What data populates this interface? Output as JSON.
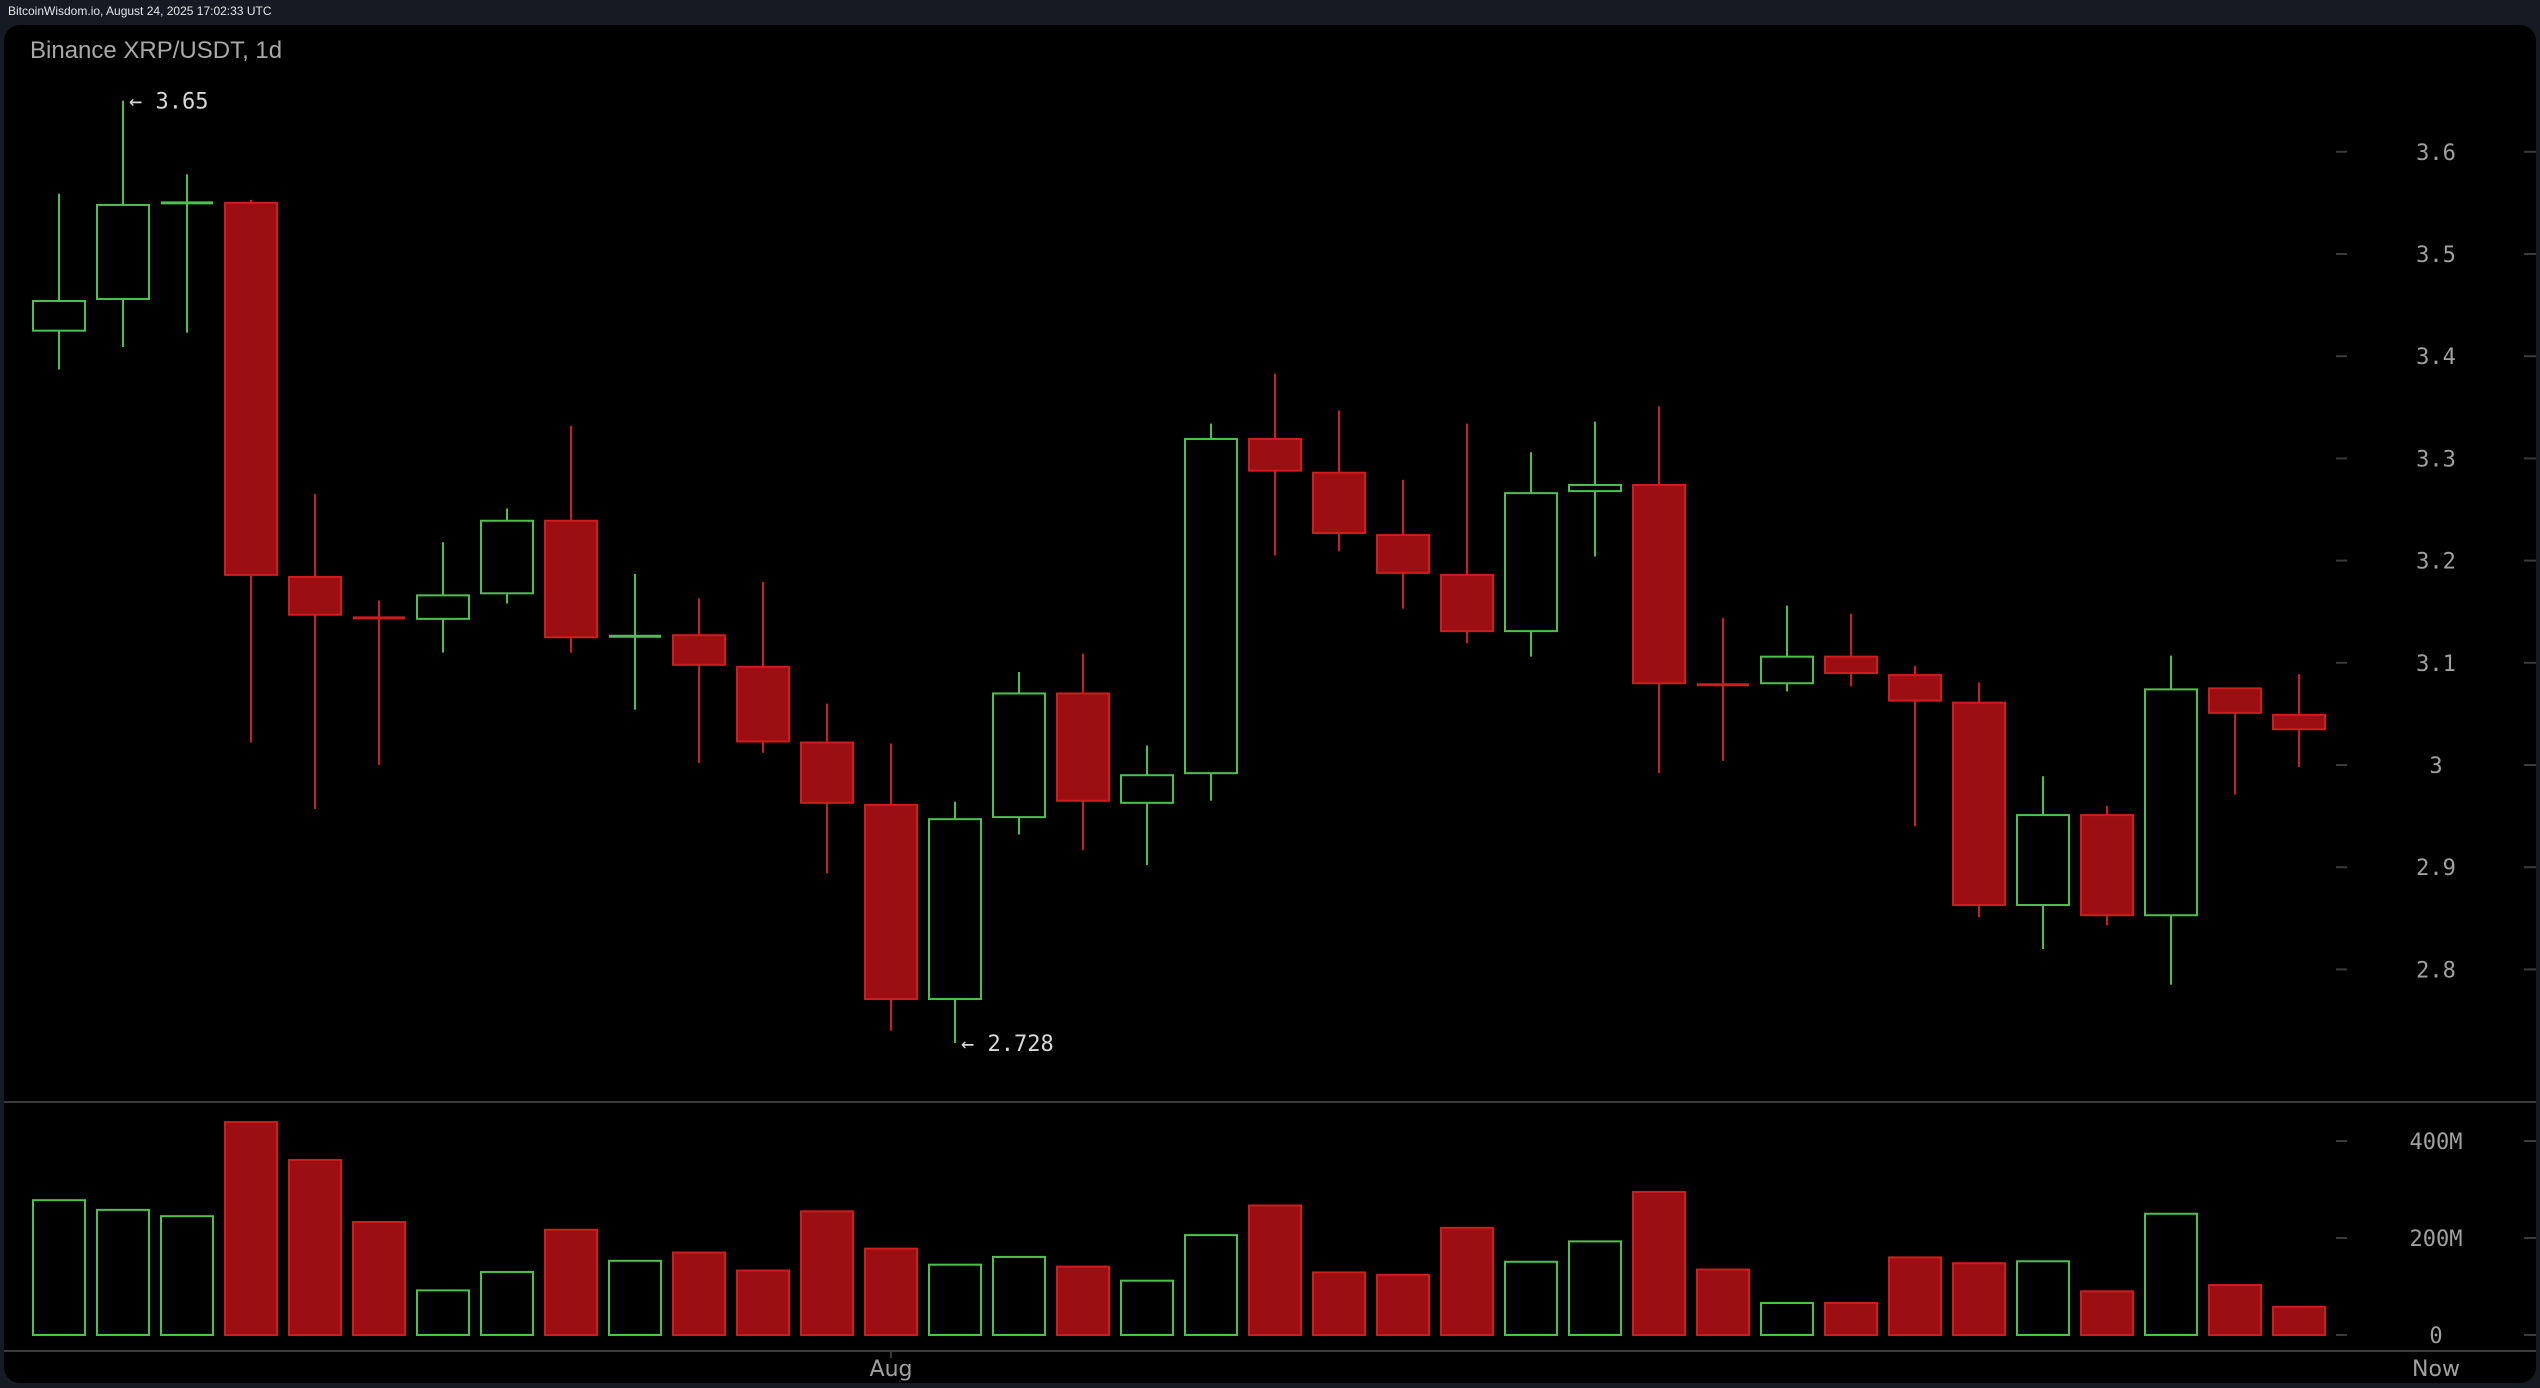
{
  "header": {
    "source_line": "BitcoinWisdom.io, August 24, 2025 17:02:33 UTC"
  },
  "chart": {
    "title": "Binance XRP/USDT, 1d",
    "colors": {
      "up": "#4cc24a",
      "down_fill": "#9b0f12",
      "down_stroke": "#d01c1c",
      "axis_text": "#a0a0a0",
      "grid": "#3a3a3a",
      "background": "#000000",
      "frame": "#151a23"
    },
    "price_axis": {
      "ticks": [
        "3.6",
        "3.5",
        "3.4",
        "3.3",
        "3.2",
        "3.1",
        "3",
        "2.9",
        "2.8"
      ]
    },
    "volume_axis": {
      "ticks": [
        "400M",
        "200M",
        "0"
      ]
    },
    "time_axis": {
      "labels": [
        {
          "text": "Aug",
          "candle_index": 13
        },
        {
          "text": "Now",
          "candle_index": 36
        }
      ]
    },
    "annotations": {
      "high_label": "← 3.65",
      "low_label": "← 2.728"
    }
  },
  "chart_data": {
    "type": "candlestick",
    "title": "Binance XRP/USDT, 1d",
    "xlabel": "",
    "ylabel": "",
    "ylim": [
      2.72,
      3.66
    ],
    "volume_ylim": [
      0,
      450000000
    ],
    "x_labels": {
      "Aug": 13,
      "Now": 36
    },
    "annotations": [
      {
        "text": "← 3.65",
        "candle": 1,
        "value": 3.65
      },
      {
        "text": "← 2.728",
        "candle": 14,
        "value": 2.728
      }
    ],
    "candles": [
      {
        "o": 3.425,
        "h": 3.559,
        "l": 3.387,
        "c": 3.454,
        "v": 278
      },
      {
        "o": 3.456,
        "h": 3.65,
        "l": 3.409,
        "c": 3.548,
        "v": 258
      },
      {
        "o": 3.549,
        "h": 3.578,
        "l": 3.423,
        "c": 3.551,
        "v": 245
      },
      {
        "o": 3.55,
        "h": 3.553,
        "l": 3.022,
        "c": 3.186,
        "v": 439
      },
      {
        "o": 3.184,
        "h": 3.265,
        "l": 2.957,
        "c": 3.147,
        "v": 361
      },
      {
        "o": 3.145,
        "h": 3.161,
        "l": 3.0,
        "c": 3.143,
        "v": 233
      },
      {
        "o": 3.143,
        "h": 3.218,
        "l": 3.11,
        "c": 3.166,
        "v": 92
      },
      {
        "o": 3.168,
        "h": 3.251,
        "l": 3.158,
        "c": 3.239,
        "v": 130
      },
      {
        "o": 3.239,
        "h": 3.332,
        "l": 3.11,
        "c": 3.125,
        "v": 217
      },
      {
        "o": 3.125,
        "h": 3.187,
        "l": 3.054,
        "c": 3.127,
        "v": 153
      },
      {
        "o": 3.127,
        "h": 3.163,
        "l": 3.002,
        "c": 3.098,
        "v": 170
      },
      {
        "o": 3.096,
        "h": 3.179,
        "l": 3.012,
        "c": 3.023,
        "v": 133
      },
      {
        "o": 3.022,
        "h": 3.06,
        "l": 2.894,
        "c": 2.963,
        "v": 255
      },
      {
        "o": 2.961,
        "h": 3.021,
        "l": 2.74,
        "c": 2.771,
        "v": 178
      },
      {
        "o": 2.771,
        "h": 2.964,
        "l": 2.728,
        "c": 2.947,
        "v": 145
      },
      {
        "o": 2.949,
        "h": 3.091,
        "l": 2.932,
        "c": 3.07,
        "v": 161
      },
      {
        "o": 3.07,
        "h": 3.109,
        "l": 2.917,
        "c": 2.965,
        "v": 141
      },
      {
        "o": 2.963,
        "h": 3.019,
        "l": 2.902,
        "c": 2.99,
        "v": 112
      },
      {
        "o": 2.992,
        "h": 3.334,
        "l": 2.965,
        "c": 3.319,
        "v": 206
      },
      {
        "o": 3.319,
        "h": 3.383,
        "l": 3.205,
        "c": 3.288,
        "v": 267
      },
      {
        "o": 3.286,
        "h": 3.347,
        "l": 3.209,
        "c": 3.227,
        "v": 129
      },
      {
        "o": 3.225,
        "h": 3.279,
        "l": 3.153,
        "c": 3.188,
        "v": 124
      },
      {
        "o": 3.186,
        "h": 3.334,
        "l": 3.119,
        "c": 3.131,
        "v": 221
      },
      {
        "o": 3.131,
        "h": 3.306,
        "l": 3.106,
        "c": 3.266,
        "v": 151
      },
      {
        "o": 3.268,
        "h": 3.336,
        "l": 3.204,
        "c": 3.274,
        "v": 193
      },
      {
        "o": 3.274,
        "h": 3.351,
        "l": 2.992,
        "c": 3.08,
        "v": 295
      },
      {
        "o": 3.079,
        "h": 3.144,
        "l": 3.004,
        "c": 3.078,
        "v": 135
      },
      {
        "o": 3.08,
        "h": 3.156,
        "l": 3.072,
        "c": 3.106,
        "v": 66
      },
      {
        "o": 3.106,
        "h": 3.148,
        "l": 3.077,
        "c": 3.09,
        "v": 66
      },
      {
        "o": 3.088,
        "h": 3.097,
        "l": 2.94,
        "c": 3.063,
        "v": 160
      },
      {
        "o": 3.061,
        "h": 3.081,
        "l": 2.851,
        "c": 2.863,
        "v": 148
      },
      {
        "o": 2.863,
        "h": 2.989,
        "l": 2.82,
        "c": 2.951,
        "v": 152
      },
      {
        "o": 2.951,
        "h": 2.96,
        "l": 2.843,
        "c": 2.853,
        "v": 90
      },
      {
        "o": 2.853,
        "h": 3.107,
        "l": 2.785,
        "c": 3.074,
        "v": 250
      },
      {
        "o": 3.075,
        "h": 3.075,
        "l": 2.971,
        "c": 3.051,
        "v": 103
      },
      {
        "o": 3.049,
        "h": 3.089,
        "l": 2.998,
        "c": 3.035,
        "v": 58
      }
    ],
    "volume_unit": "M"
  }
}
